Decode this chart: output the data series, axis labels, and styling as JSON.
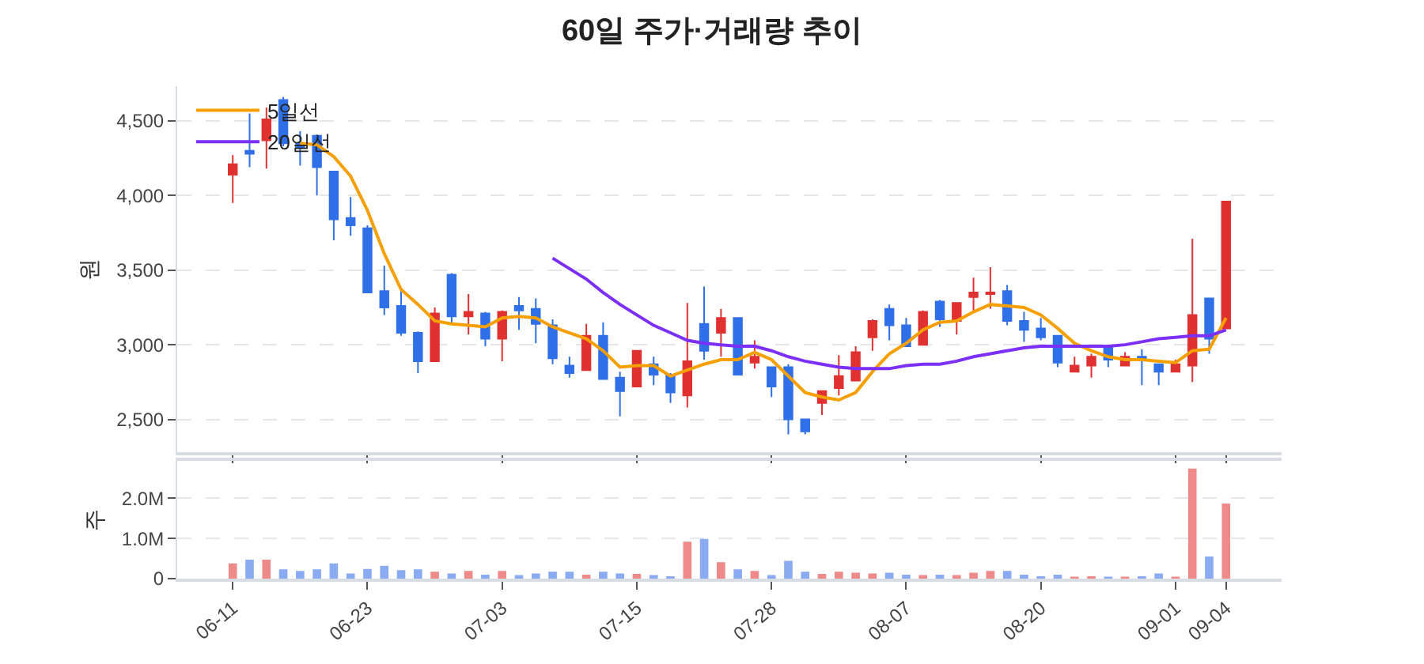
{
  "chart_data": [
    {
      "type": "candlestick",
      "title": "60일 주가·거래량 추이",
      "ylabel": "원",
      "categories": [
        "06-11",
        null,
        null,
        null,
        null,
        null,
        null,
        null,
        "06-23",
        null,
        null,
        null,
        null,
        null,
        null,
        null,
        "07-03",
        null,
        null,
        null,
        null,
        null,
        null,
        null,
        "07-15",
        null,
        null,
        null,
        null,
        null,
        null,
        null,
        "07-28",
        null,
        null,
        null,
        null,
        null,
        null,
        null,
        "08-07",
        null,
        null,
        null,
        null,
        null,
        null,
        null,
        "08-20",
        null,
        null,
        null,
        null,
        null,
        null,
        null,
        "09-01",
        null,
        null,
        "09-04"
      ],
      "ohlc": [
        [
          4140,
          4270,
          3950,
          4210
        ],
        [
          4300,
          4550,
          4190,
          4280
        ],
        [
          4370,
          4590,
          4180,
          4510
        ],
        [
          4640,
          4660,
          4330,
          4350
        ],
        [
          4350,
          4430,
          4200,
          4320
        ],
        [
          4400,
          4410,
          4000,
          4190
        ],
        [
          4160,
          4160,
          3700,
          3840
        ],
        [
          3850,
          3990,
          3730,
          3800
        ],
        [
          3780,
          3800,
          3350,
          3350
        ],
        [
          3360,
          3530,
          3200,
          3250
        ],
        [
          3260,
          3360,
          3060,
          3080
        ],
        [
          3080,
          3090,
          2810,
          2890
        ],
        [
          2890,
          3250,
          2890,
          3210
        ],
        [
          3470,
          3480,
          3140,
          3190
        ],
        [
          3190,
          3340,
          3070,
          3220
        ],
        [
          3210,
          3220,
          2990,
          3040
        ],
        [
          3040,
          3230,
          2890,
          3220
        ],
        [
          3260,
          3320,
          3100,
          3230
        ],
        [
          3240,
          3310,
          3010,
          3140
        ],
        [
          3130,
          3170,
          2870,
          2910
        ],
        [
          2860,
          2920,
          2780,
          2810
        ],
        [
          2830,
          3140,
          2830,
          3060
        ],
        [
          3060,
          3150,
          2770,
          2770
        ],
        [
          2780,
          2820,
          2520,
          2690
        ],
        [
          2720,
          2960,
          2720,
          2960
        ],
        [
          2870,
          2920,
          2730,
          2800
        ],
        [
          2800,
          2810,
          2610,
          2680
        ],
        [
          2660,
          3280,
          2580,
          2890
        ],
        [
          3140,
          3390,
          2900,
          2960
        ],
        [
          3080,
          3240,
          2920,
          3180
        ],
        [
          3180,
          3180,
          2800,
          2800
        ],
        [
          2880,
          3030,
          2840,
          2920
        ],
        [
          2850,
          2850,
          2650,
          2720
        ],
        [
          2850,
          2870,
          2400,
          2500
        ],
        [
          2500,
          2500,
          2400,
          2420
        ],
        [
          2610,
          2690,
          2530,
          2690
        ],
        [
          2710,
          2930,
          2660,
          2790
        ],
        [
          2760,
          2990,
          2760,
          2950
        ],
        [
          3050,
          3170,
          2960,
          3160
        ],
        [
          3240,
          3270,
          3030,
          3130
        ],
        [
          3130,
          3180,
          2990,
          2990
        ],
        [
          3000,
          3230,
          3000,
          3220
        ],
        [
          3290,
          3300,
          3120,
          3170
        ],
        [
          3160,
          3280,
          3070,
          3280
        ],
        [
          3320,
          3450,
          3220,
          3350
        ],
        [
          3340,
          3520,
          3240,
          3350
        ],
        [
          3360,
          3400,
          3130,
          3160
        ],
        [
          3160,
          3220,
          3020,
          3100
        ],
        [
          3110,
          3180,
          3030,
          3050
        ],
        [
          3060,
          3060,
          2850,
          2880
        ],
        [
          2820,
          2920,
          2820,
          2860
        ],
        [
          2860,
          2940,
          2780,
          2920
        ],
        [
          2990,
          2990,
          2850,
          2900
        ],
        [
          2860,
          2950,
          2860,
          2920
        ],
        [
          2920,
          2970,
          2730,
          2910
        ],
        [
          2870,
          2870,
          2730,
          2820
        ],
        [
          2820,
          2900,
          2820,
          2870
        ],
        [
          2860,
          3710,
          2750,
          3200
        ],
        [
          3310,
          3310,
          2940,
          3040
        ],
        [
          3110,
          3960,
          3110,
          3960
        ]
      ],
      "colors": [
        "#e03131",
        "#2f6fe8",
        "#e03131",
        "#2f6fe8",
        "#2f6fe8",
        "#2f6fe8",
        "#2f6fe8",
        "#2f6fe8",
        "#2f6fe8",
        "#2f6fe8",
        "#2f6fe8",
        "#2f6fe8",
        "#e03131",
        "#2f6fe8",
        "#e03131",
        "#2f6fe8",
        "#e03131",
        "#2f6fe8",
        "#2f6fe8",
        "#2f6fe8",
        "#2f6fe8",
        "#e03131",
        "#2f6fe8",
        "#2f6fe8",
        "#e03131",
        "#2f6fe8",
        "#2f6fe8",
        "#e03131",
        "#2f6fe8",
        "#e03131",
        "#2f6fe8",
        "#e03131",
        "#2f6fe8",
        "#2f6fe8",
        "#2f6fe8",
        "#e03131",
        "#e03131",
        "#e03131",
        "#e03131",
        "#2f6fe8",
        "#2f6fe8",
        "#e03131",
        "#2f6fe8",
        "#e03131",
        "#e03131",
        "#e03131",
        "#2f6fe8",
        "#2f6fe8",
        "#2f6fe8",
        "#2f6fe8",
        "#e03131",
        "#e03131",
        "#2f6fe8",
        "#e03131",
        "#2f6fe8",
        "#2f6fe8",
        "#e03131",
        "#e03131",
        "#2f6fe8",
        "#e03131"
      ],
      "series": [
        {
          "name": "5일선",
          "type": "line",
          "color": "#f59f00",
          "values": [
            null,
            null,
            null,
            null,
            4350,
            4340,
            4260,
            4130,
            3900,
            3610,
            3370,
            3270,
            3160,
            3140,
            3130,
            3120,
            3180,
            3190,
            3180,
            3120,
            3080,
            3040,
            2960,
            2850,
            2860,
            2860,
            2790,
            2830,
            2870,
            2900,
            2900,
            2950,
            2900,
            2790,
            2680,
            2650,
            2630,
            2680,
            2820,
            2940,
            3010,
            3100,
            3150,
            3160,
            3220,
            3270,
            3260,
            3250,
            3200,
            3110,
            3010,
            2960,
            2920,
            2900,
            2900,
            2890,
            2880,
            2960,
            2970,
            3180
          ]
        },
        {
          "name": "20일선",
          "type": "line",
          "color": "#7b2ff7",
          "values": [
            null,
            null,
            null,
            null,
            null,
            null,
            null,
            null,
            null,
            null,
            null,
            null,
            null,
            null,
            null,
            null,
            null,
            null,
            null,
            3580,
            3510,
            3440,
            3350,
            3270,
            3200,
            3130,
            3080,
            3030,
            3010,
            3000,
            2990,
            2990,
            2960,
            2920,
            2890,
            2870,
            2850,
            2840,
            2840,
            2840,
            2860,
            2870,
            2870,
            2890,
            2920,
            2940,
            2960,
            2980,
            2990,
            2990,
            2990,
            2990,
            2990,
            3000,
            3020,
            3040,
            3050,
            3060,
            3060,
            3100
          ]
        }
      ],
      "ylim": [
        2280,
        4730
      ],
      "yticks": [
        {
          "value": 2500,
          "label": "2,500"
        },
        {
          "value": 3000,
          "label": "3,000"
        },
        {
          "value": 3500,
          "label": "3,500"
        },
        {
          "value": 4000,
          "label": "4,000"
        },
        {
          "value": 4500,
          "label": "4,500"
        }
      ],
      "grid": "y",
      "legend": "top left",
      "tick_labels": "y",
      "marker": "none",
      "line_style": "solid"
    },
    {
      "type": "bar",
      "ylabel": "주",
      "categories": [
        "06-11",
        null,
        null,
        null,
        null,
        null,
        null,
        null,
        "06-23",
        null,
        null,
        null,
        null,
        null,
        null,
        null,
        "07-03",
        null,
        null,
        null,
        null,
        null,
        null,
        null,
        "07-15",
        null,
        null,
        null,
        null,
        null,
        null,
        null,
        "07-28",
        null,
        null,
        null,
        null,
        null,
        null,
        null,
        "08-07",
        null,
        null,
        null,
        null,
        null,
        null,
        null,
        "08-20",
        null,
        null,
        null,
        null,
        null,
        null,
        null,
        "09-01",
        null,
        null,
        "09-04"
      ],
      "values": [
        380000,
        470000,
        470000,
        230000,
        190000,
        230000,
        380000,
        130000,
        240000,
        320000,
        210000,
        230000,
        170000,
        130000,
        190000,
        100000,
        190000,
        90000,
        130000,
        170000,
        170000,
        100000,
        170000,
        130000,
        120000,
        90000,
        60000,
        920000,
        990000,
        410000,
        230000,
        190000,
        90000,
        440000,
        170000,
        120000,
        170000,
        150000,
        130000,
        150000,
        100000,
        90000,
        100000,
        90000,
        150000,
        190000,
        190000,
        100000,
        60000,
        100000,
        50000,
        60000,
        40000,
        50000,
        60000,
        130000,
        50000,
        2740000,
        550000,
        1870000
      ],
      "colors": [
        "#ee8a8a",
        "#8aaaf2",
        "#ee8a8a",
        "#8aaaf2",
        "#8aaaf2",
        "#8aaaf2",
        "#8aaaf2",
        "#8aaaf2",
        "#8aaaf2",
        "#8aaaf2",
        "#8aaaf2",
        "#8aaaf2",
        "#ee8a8a",
        "#8aaaf2",
        "#ee8a8a",
        "#8aaaf2",
        "#ee8a8a",
        "#8aaaf2",
        "#8aaaf2",
        "#8aaaf2",
        "#8aaaf2",
        "#ee8a8a",
        "#8aaaf2",
        "#8aaaf2",
        "#ee8a8a",
        "#8aaaf2",
        "#8aaaf2",
        "#ee8a8a",
        "#8aaaf2",
        "#ee8a8a",
        "#8aaaf2",
        "#ee8a8a",
        "#8aaaf2",
        "#8aaaf2",
        "#8aaaf2",
        "#ee8a8a",
        "#ee8a8a",
        "#ee8a8a",
        "#ee8a8a",
        "#8aaaf2",
        "#8aaaf2",
        "#ee8a8a",
        "#8aaaf2",
        "#ee8a8a",
        "#ee8a8a",
        "#ee8a8a",
        "#8aaaf2",
        "#8aaaf2",
        "#8aaaf2",
        "#8aaaf2",
        "#ee8a8a",
        "#ee8a8a",
        "#8aaaf2",
        "#ee8a8a",
        "#8aaaf2",
        "#8aaaf2",
        "#ee8a8a",
        "#ee8a8a",
        "#8aaaf2",
        "#ee8a8a"
      ],
      "ylim": [
        0,
        2920000
      ],
      "yticks": [
        0,
        {
          "value": 1000000,
          "label": "1.0M"
        },
        {
          "value": 2000000,
          "label": "2.0M"
        }
      ],
      "grid": "y"
    }
  ]
}
